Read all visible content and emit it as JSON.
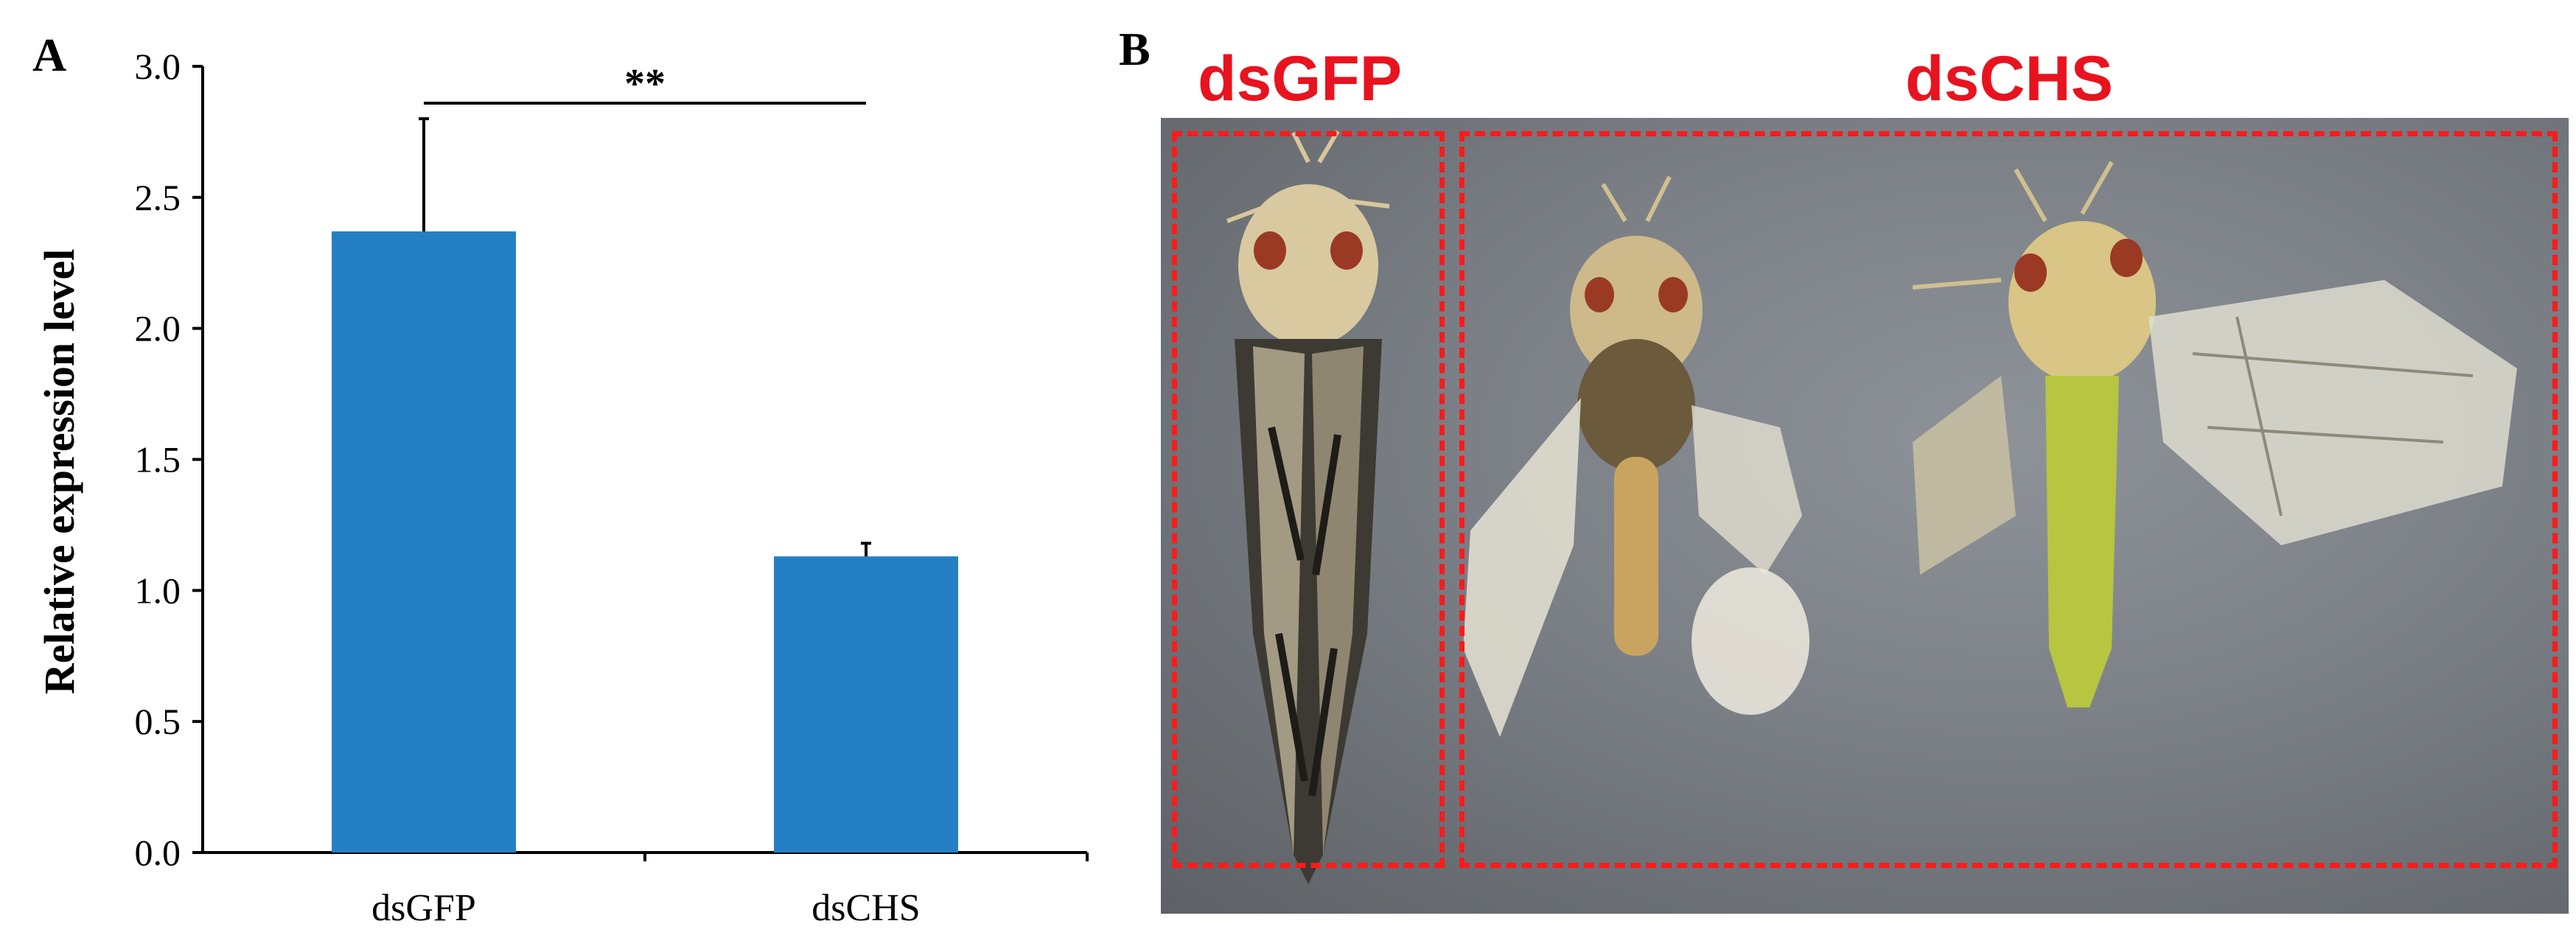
{
  "panels": {
    "a_label": "A",
    "b_label": "B"
  },
  "chart_data": {
    "type": "bar",
    "categories": [
      "dsGFP",
      "dsCHS"
    ],
    "values": [
      2.37,
      1.13
    ],
    "error": [
      0.43,
      0.05
    ],
    "ylabel": "Relative expression level",
    "ylim": [
      0,
      3.0
    ],
    "yticks": [
      "0.0",
      "0.5",
      "1.0",
      "1.5",
      "2.0",
      "2.5",
      "3.0"
    ],
    "significance": "**",
    "bar_color": "#2580c3",
    "grid": false
  },
  "photo": {
    "labels": [
      "dsGFP",
      "dsCHS"
    ],
    "label_color": "#e8131f",
    "box_color": "#ff1a1a"
  }
}
